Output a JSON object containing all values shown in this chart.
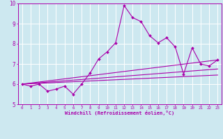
{
  "xlabel": "Windchill (Refroidissement éolien,°C)",
  "xlim": [
    -0.5,
    23.5
  ],
  "ylim": [
    5,
    10
  ],
  "xticks": [
    0,
    1,
    2,
    3,
    4,
    5,
    6,
    7,
    8,
    9,
    10,
    11,
    12,
    13,
    14,
    15,
    16,
    17,
    18,
    19,
    20,
    21,
    22,
    23
  ],
  "yticks": [
    5,
    6,
    7,
    8,
    9,
    10
  ],
  "bg_color": "#cde8f0",
  "line_color": "#aa00aa",
  "grid_color": "#ffffff",
  "series1_x": [
    0,
    1,
    2,
    3,
    4,
    5,
    6,
    7,
    8,
    9,
    10,
    11,
    12,
    13,
    14,
    15,
    16,
    17,
    18,
    19,
    20,
    21,
    22,
    23
  ],
  "series1_y": [
    6.0,
    5.9,
    6.0,
    5.65,
    5.75,
    5.9,
    5.5,
    6.0,
    6.55,
    7.25,
    7.6,
    8.05,
    9.9,
    9.3,
    9.1,
    8.4,
    8.05,
    8.3,
    7.85,
    6.5,
    7.8,
    7.0,
    6.9,
    7.2
  ],
  "series2_x": [
    0,
    23
  ],
  "series2_y": [
    6.0,
    7.2
  ],
  "series3_x": [
    0,
    23
  ],
  "series3_y": [
    6.0,
    6.75
  ],
  "series4_x": [
    0,
    23
  ],
  "series4_y": [
    6.0,
    6.45
  ]
}
